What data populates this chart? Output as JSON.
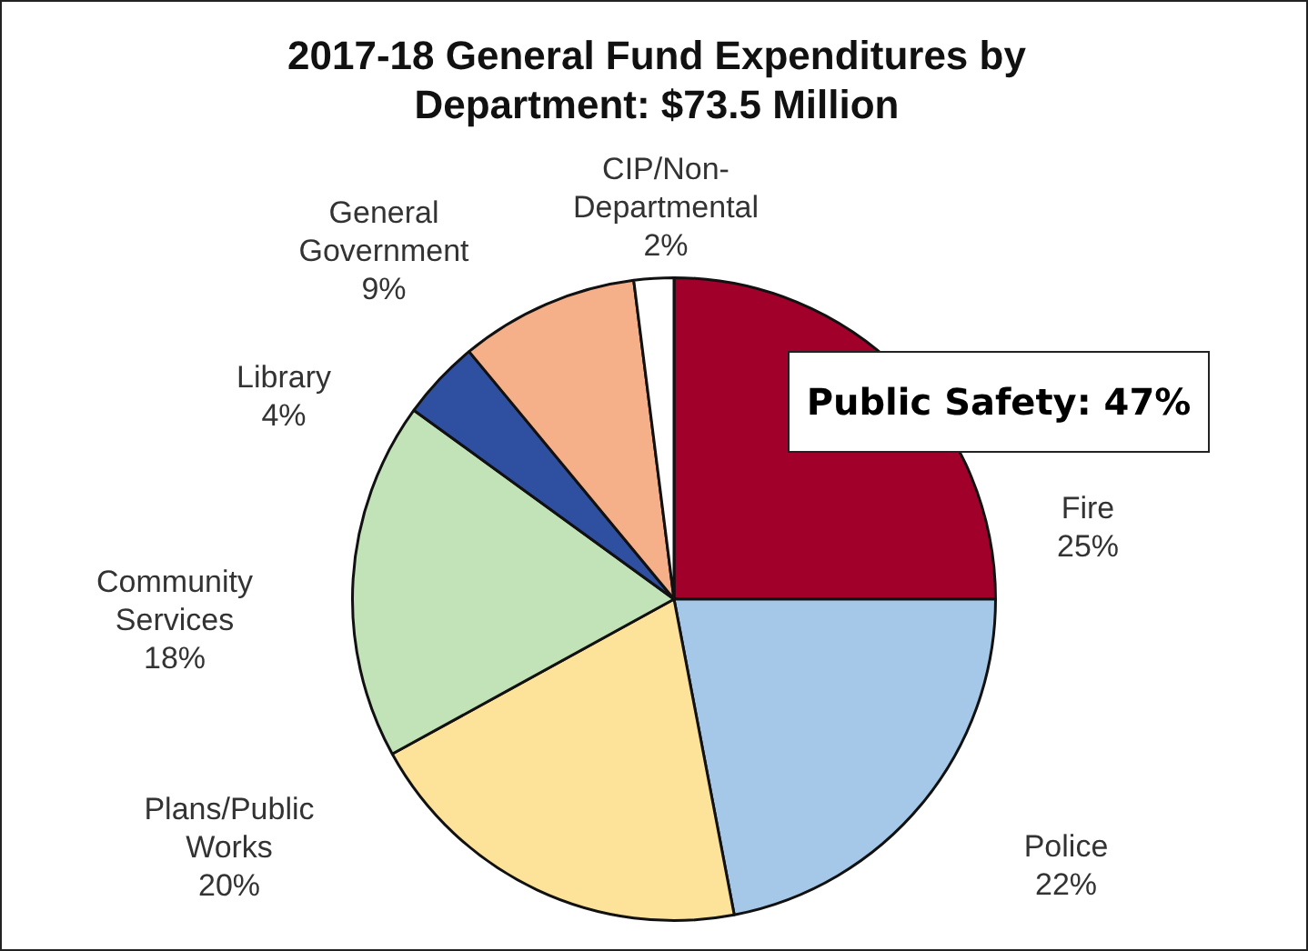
{
  "chart_data": {
    "type": "pie",
    "title": "2017-18 General Fund Expenditures by Department: $73.5 Million",
    "categories": [
      "Fire",
      "Police",
      "Plans/Public Works",
      "Community Services",
      "Library",
      "General Government",
      "CIP/Non-Departmental"
    ],
    "values": [
      25,
      22,
      20,
      18,
      4,
      9,
      2
    ],
    "colors": [
      "#a0002a",
      "#a6c8e8",
      "#fde29a",
      "#c2e2b8",
      "#2f4fa0",
      "#f5b08a",
      "#ffffff"
    ],
    "value_labels": [
      "25%",
      "22%",
      "20%",
      "18%",
      "4%",
      "9%",
      "2%"
    ],
    "annotations": [
      "Public Safety: 47%"
    ]
  }
}
